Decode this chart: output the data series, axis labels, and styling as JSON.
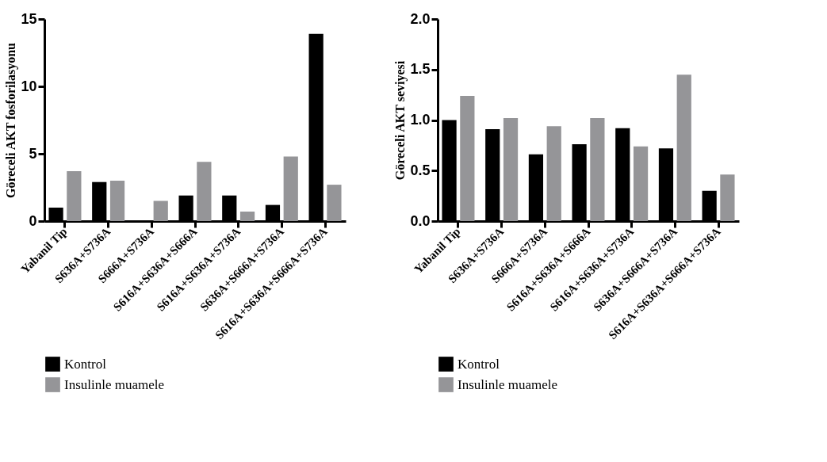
{
  "chart_data": [
    {
      "type": "bar",
      "ylabel": "Göreceli AKT fosforilasyonu",
      "categories": [
        "Yabanil Tip",
        "S636A+S736A",
        "S666A+S736A",
        "S616A+S636A+S666A",
        "S616A+S636A+S736A",
        "S636A+S666A+S736A",
        "S616A+S636A+S666A+S736A"
      ],
      "series": [
        {
          "name": "Kontrol",
          "color": "#000000",
          "values": [
            1.0,
            2.9,
            0.05,
            1.9,
            1.9,
            1.2,
            13.9
          ]
        },
        {
          "name": "Insulinle muamele",
          "color": "#959598",
          "values": [
            3.7,
            3.0,
            1.5,
            4.4,
            0.7,
            4.8,
            2.7
          ]
        }
      ],
      "ylim": [
        0,
        15
      ],
      "yticks": [
        0,
        5,
        10,
        15
      ],
      "grid": false,
      "legend": "bottom"
    },
    {
      "type": "bar",
      "ylabel": "Göreceli AKT seviyesi",
      "categories": [
        "Yabanil Tip",
        "S636A+S736A",
        "S666A+S736A",
        "S616A+S636A+S666A",
        "S616A+S636A+S736A",
        "S636A+S666A+S736A",
        "S616A+S636A+S666A+S736A"
      ],
      "series": [
        {
          "name": "Kontrol",
          "color": "#000000",
          "values": [
            1.0,
            0.91,
            0.66,
            0.76,
            0.92,
            0.72,
            0.3
          ]
        },
        {
          "name": "Insulinle muamele",
          "color": "#959598",
          "values": [
            1.24,
            1.02,
            0.94,
            1.02,
            0.74,
            1.45,
            0.46
          ]
        }
      ],
      "ylim": [
        0,
        2.0
      ],
      "yticks": [
        {
          "value": 0,
          "label": "0.0"
        },
        0.5,
        {
          "value": 1,
          "label": "1.0"
        },
        1.5,
        {
          "value": 2,
          "label": "2.0"
        }
      ],
      "grid": false,
      "legend": "bottom"
    }
  ]
}
